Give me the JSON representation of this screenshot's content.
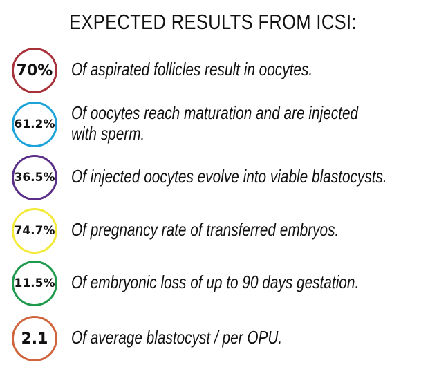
{
  "title": "EXPECTED RESULTS FROM ICSI:",
  "items": [
    {
      "value": "70%",
      "lines": [
        "Of aspirated follicles result in oocytes."
      ],
      "color": "#a8323a"
    },
    {
      "value": "61.2%",
      "lines": [
        "Of oocytes reach maturation and are injected",
        "with sperm."
      ],
      "color": "#1ba3da"
    },
    {
      "value": "36.5%",
      "lines": [
        "Of injected oocytes evolve into viable blastocysts."
      ],
      "color": "#5b2e87"
    },
    {
      "value": "74.7%",
      "lines": [
        "Of pregnancy rate of transferred embryos."
      ],
      "color": "#f3ea3c"
    },
    {
      "value": "11.5%",
      "lines": [
        "Of embryonic loss of up to 90 days gestation."
      ],
      "color": "#1f9a4c"
    },
    {
      "value": "2.1",
      "lines": [
        "Of average blastocyst / per OPU."
      ],
      "color": "#d0643c"
    }
  ]
}
